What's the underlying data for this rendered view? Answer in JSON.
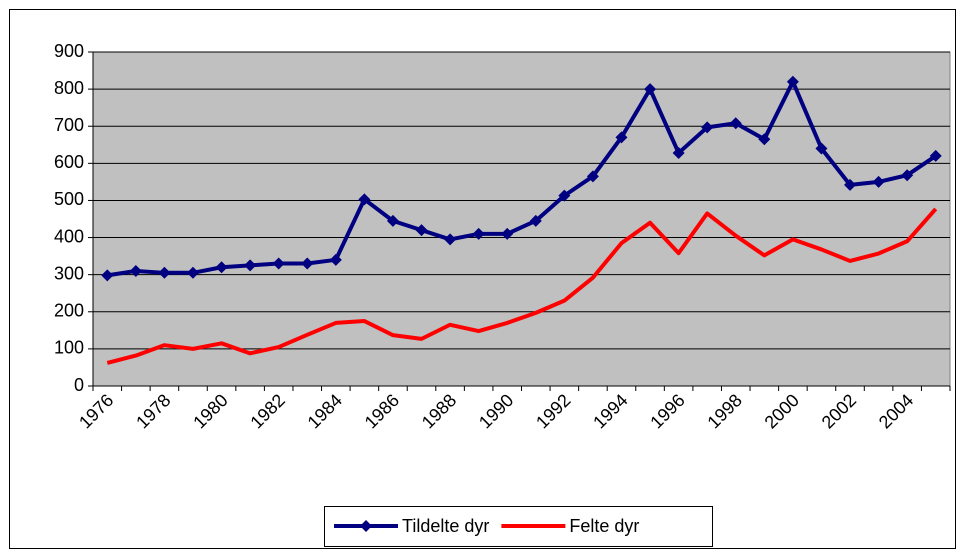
{
  "chart_data": {
    "type": "line",
    "categories": [
      "1976",
      null,
      "1978",
      null,
      "1980",
      null,
      "1982",
      null,
      "1984",
      null,
      "1986",
      null,
      "1988",
      null,
      "1990",
      null,
      "1992",
      null,
      "1994",
      null,
      "1996",
      null,
      "1998",
      null,
      "2000",
      null,
      "2002",
      null,
      "2004",
      null
    ],
    "series": [
      {
        "name": "Tildelte dyr",
        "color": "#000080",
        "marker": "diamond",
        "values": [
          298,
          310,
          305,
          305,
          320,
          325,
          330,
          330,
          340,
          503,
          445,
          420,
          395,
          410,
          410,
          445,
          513,
          565,
          670,
          800,
          628,
          697,
          708,
          665,
          820,
          640,
          542,
          550,
          568,
          620
        ]
      },
      {
        "name": "Felte dyr",
        "color": "#ff0000",
        "values": [
          62,
          82,
          110,
          100,
          115,
          88,
          105,
          138,
          170,
          175,
          137,
          127,
          165,
          148,
          170,
          197,
          230,
          292,
          385,
          440,
          358,
          465,
          405,
          352,
          395,
          368,
          337,
          357,
          390,
          477
        ]
      }
    ],
    "ylim": [
      0,
      900
    ],
    "yticks": [
      0,
      100,
      200,
      300,
      400,
      500,
      600,
      700,
      800,
      900
    ],
    "grid": true,
    "legend": "bottom",
    "plot_background": "#c0c0c0"
  }
}
